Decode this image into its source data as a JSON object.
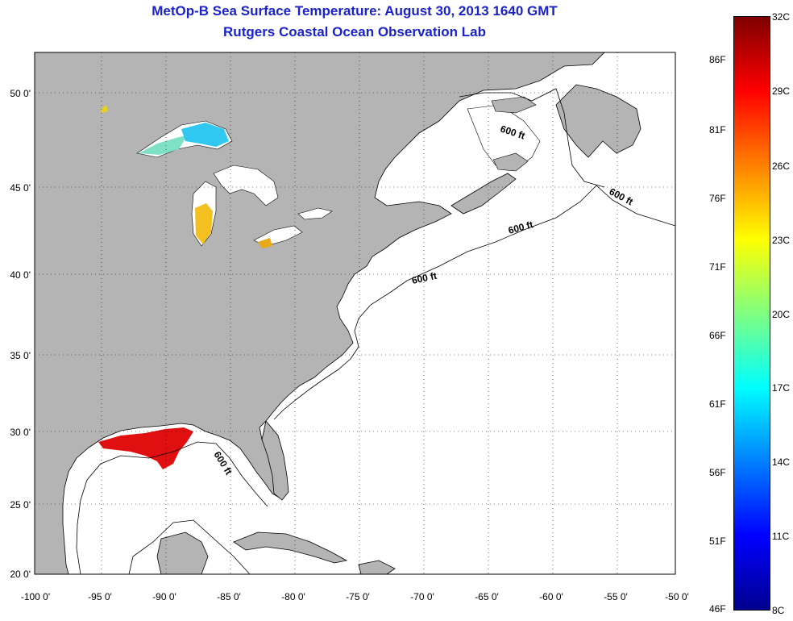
{
  "title_line1": "MetOp-B Sea Surface Temperature:  August 30, 2013 1640 GMT",
  "title_line2": "Rutgers Coastal Ocean Observation Lab",
  "lon_ticks": [
    "-100 0'",
    "-95 0'",
    "-90 0'",
    "-85 0'",
    "-80 0'",
    "-75 0'",
    "-70 0'",
    "-65 0'",
    "-60 0'",
    "-55 0'",
    "-50 0'"
  ],
  "lat_ticks": [
    "50 0'",
    "45 0'",
    "40 0'",
    "35 0'",
    "30 0'",
    "25 0'",
    "20 0'"
  ],
  "contour_labels": [
    "600 ft",
    "600 ft",
    "600 ft",
    "600 ft",
    "600 ft"
  ],
  "colorbar": {
    "celsius": [
      "32C",
      "29C",
      "26C",
      "23C",
      "20C",
      "17C",
      "14C",
      "11C",
      "8C"
    ],
    "fahrenheit": [
      "86F",
      "81F",
      "76F",
      "71F",
      "66F",
      "61F",
      "56F",
      "51F",
      "46F"
    ],
    "colors": [
      "#7f0000",
      "#ff0000",
      "#ff8000",
      "#ffff00",
      "#80ff80",
      "#00ffff",
      "#0080ff",
      "#0000ff",
      "#00008f"
    ]
  },
  "colors": {
    "title": "#1a22c8",
    "land": "#b4b4b4",
    "ocean": "#ffffff"
  }
}
